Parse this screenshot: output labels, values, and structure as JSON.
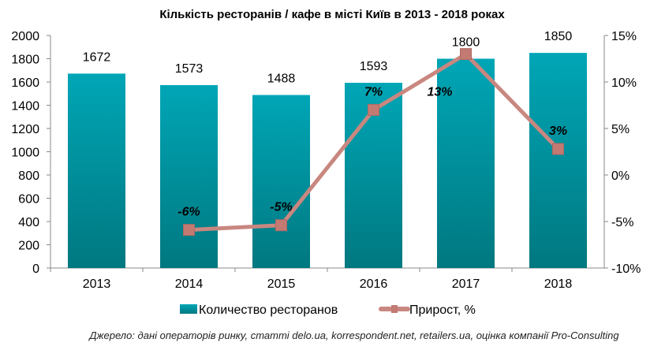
{
  "chart_data": {
    "type": "bar+line",
    "title": "Кількість ресторанів / кафе в місті Київ в 2013 - 2018 роках",
    "categories": [
      "2013",
      "2014",
      "2015",
      "2016",
      "2017",
      "2018"
    ],
    "series": [
      {
        "name": "Количество ресторанов",
        "type": "bar",
        "axis": "left",
        "values": [
          1672,
          1573,
          1488,
          1593,
          1800,
          1850
        ],
        "labels": [
          "1672",
          "1573",
          "1488",
          "1593",
          "1800",
          "1850"
        ]
      },
      {
        "name": "Прирост, %",
        "type": "line",
        "axis": "right",
        "values": [
          null,
          -5.9,
          -5.4,
          7.0,
          13.0,
          2.8
        ],
        "labels": [
          "",
          "-6%",
          "-5%",
          "7%",
          "13%",
          "3%"
        ]
      }
    ],
    "ylim": [
      0,
      2000
    ],
    "yticks": [
      "0",
      "200",
      "400",
      "600",
      "800",
      "1000",
      "1200",
      "1400",
      "1600",
      "1800",
      "2000"
    ],
    "y2lim": [
      -10,
      15
    ],
    "y2ticks": [
      "-10%",
      "-5%",
      "0%",
      "5%",
      "10%",
      "15%"
    ],
    "legend": "bottom",
    "colors": {
      "bar_top": "#00a6b6",
      "bar_bottom": "#007880",
      "line": "#c8877f",
      "marker": "#c27a72"
    }
  },
  "source": "Джерело: дані операторів ринку, статті delo.ua, korrespondent.net, retailers.ua, оцінка компанії Pro-Consulting"
}
